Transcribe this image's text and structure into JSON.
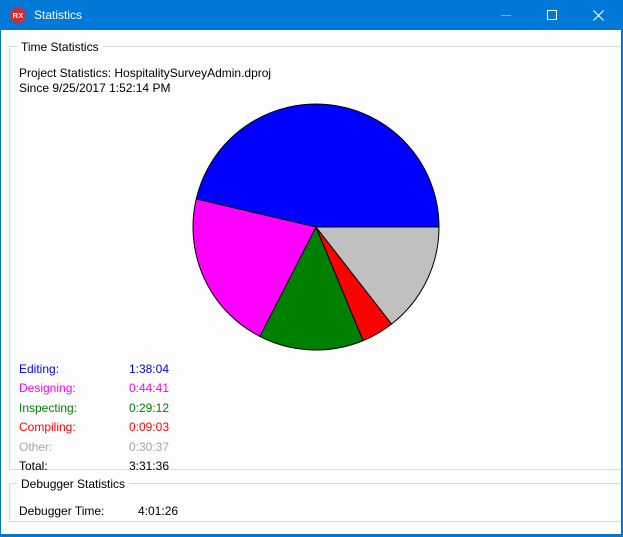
{
  "window": {
    "title": "Statistics",
    "app_icon_text": "RX",
    "controls": {
      "minimize": "minimize",
      "maximize": "maximize",
      "close": "close"
    }
  },
  "colors": {
    "titlebar": "#0078d7",
    "app_icon": "#d42a32",
    "groupbox_border": "#d9d9d9",
    "pie_stroke": "#000000"
  },
  "time_statistics": {
    "group_label": "Time Statistics",
    "project_line": "Project Statistics: HospitalitySurveyAdmin.dproj",
    "since_line": "Since 9/25/2017 1:52:14 PM",
    "legend": [
      {
        "label": "Editing:",
        "value": "1:38:04",
        "color": "#0000ff"
      },
      {
        "label": "Designing:",
        "value": "0:44:41",
        "color": "#ff00ff"
      },
      {
        "label": "Inspecting:",
        "value": "0:29:12",
        "color": "#008000"
      },
      {
        "label": "Compiling:",
        "value": "0:09:03",
        "color": "#ff0000"
      },
      {
        "label": "Other:",
        "value": "0:30:37",
        "color": "#a6a6a6"
      }
    ],
    "total": {
      "label": "Total:",
      "value": "3:31:36",
      "color": "#000000"
    }
  },
  "debugger_statistics": {
    "group_label": "Debugger Statistics",
    "time_label": "Debugger Time:",
    "time_value": "4:01:26"
  },
  "chart_data": {
    "type": "pie",
    "title": "Time Statistics",
    "categories": [
      "Editing",
      "Designing",
      "Inspecting",
      "Compiling",
      "Other"
    ],
    "values_hms": [
      "1:38:04",
      "0:44:41",
      "0:29:12",
      "0:09:03",
      "0:30:37"
    ],
    "values_seconds": [
      5884,
      2681,
      1752,
      543,
      1837
    ],
    "total_displayed": "3:31:36",
    "slice_colors": [
      "#0000ff",
      "#ff00ff",
      "#008000",
      "#ff0000",
      "#c0c0c0"
    ],
    "start_angle_deg": 0,
    "direction": "counterclockwise",
    "stroke": "#000000",
    "legend_position": "bottom-left"
  }
}
